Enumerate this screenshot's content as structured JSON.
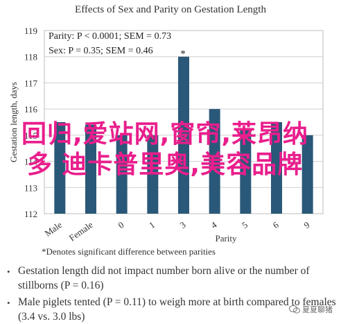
{
  "chart_data": {
    "type": "bar",
    "title": "Effects of Sex and Parity on Gestation Length",
    "xlabel": "Parity",
    "ylabel": "Gestation length, days",
    "categories": [
      "Male",
      "Female",
      "0",
      "1",
      "3",
      "4",
      "5",
      "6",
      "9"
    ],
    "values": [
      115.5,
      115.4,
      115.0,
      115.0,
      118.0,
      116.0,
      115.2,
      115.5,
      115.0
    ],
    "ylim": [
      112,
      119
    ],
    "yticks": [
      "112",
      "113",
      "114",
      "115",
      "116",
      "117",
      "118",
      "119"
    ],
    "bar_color": "#2a5878",
    "grid": true,
    "annotations": {
      "line1": "Parity: P < 0.0001; SEM = 0.73",
      "line2": "Sex: P = 0.35; SEM = 0.46",
      "star": "*"
    }
  },
  "note": "*Denotes significant difference between parities",
  "bullets": [
    "Gestation length did not impact number born alive or the number of stillborns (P = 0.16)",
    "Male piglets tented (P = 0.11) to weigh more at birth compared to females (3.4 vs. 3.0 lbs)"
  ],
  "overlay_text": "回归,爱站网,窗帘,莱昂纳多 迪卡普里奥,美容品牌",
  "watermark": "夏夏聊猪"
}
